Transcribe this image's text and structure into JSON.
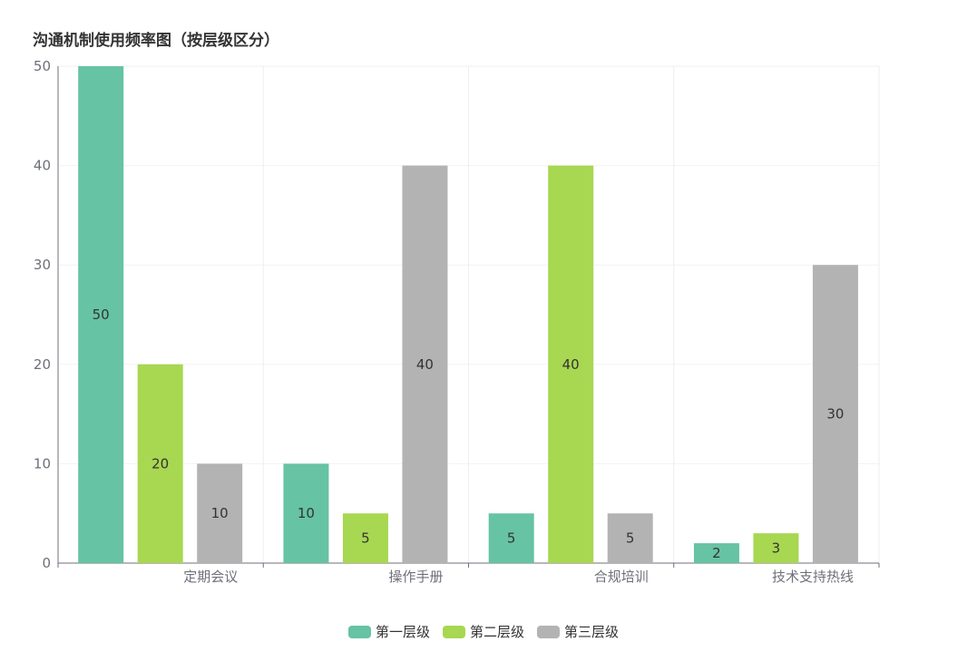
{
  "title": "沟通机制使用频率图（按层级区分）",
  "chart_data": {
    "type": "bar",
    "title": "沟通机制使用频率图（按层级区分）",
    "categories": [
      "定期会议",
      "操作手册",
      "合规培训",
      "技术支持热线"
    ],
    "series": [
      {
        "name": "第一层级",
        "values": [
          50,
          10,
          5,
          2
        ],
        "color": "#66c3a4"
      },
      {
        "name": "第二层级",
        "values": [
          20,
          5,
          40,
          3
        ],
        "color": "#a8d751"
      },
      {
        "name": "第三层级",
        "values": [
          10,
          40,
          5,
          30
        ],
        "color": "#b3b3b3"
      }
    ],
    "yticks": [
      0,
      10,
      20,
      30,
      40,
      50
    ],
    "ylim": [
      0,
      50
    ],
    "grid": true,
    "legend_position": "bottom-center",
    "data_labels": "inside-center"
  }
}
